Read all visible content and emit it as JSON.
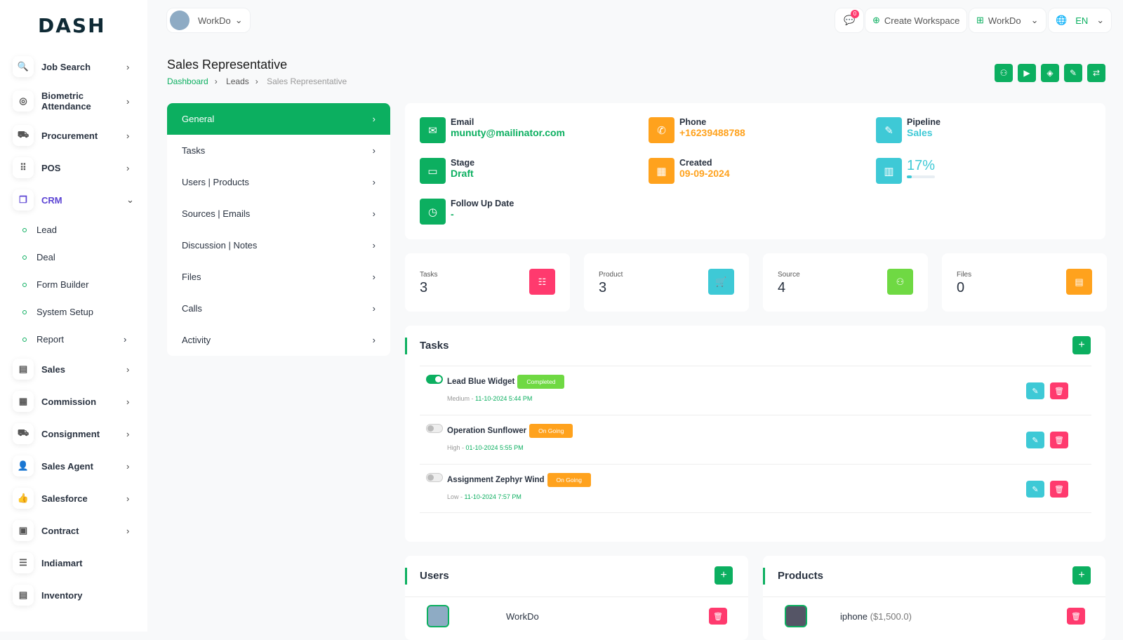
{
  "brand": "DASH",
  "workspace_selector": "WorkDo",
  "header": {
    "notifications_count": "0",
    "create_workspace": "Create Workspace",
    "workspace": "WorkDo",
    "language": "EN"
  },
  "sidebar": {
    "items": [
      {
        "label": "Job Search",
        "icon": "file-search-icon"
      },
      {
        "label": "Biometric Attendance",
        "icon": "fingerprint-icon"
      },
      {
        "label": "Procurement",
        "icon": "cart-icon"
      },
      {
        "label": "POS",
        "icon": "grid-icon"
      },
      {
        "label": "CRM",
        "icon": "layers-icon"
      },
      {
        "label": "Sales",
        "icon": "file-icon"
      },
      {
        "label": "Commission",
        "icon": "calculator-icon"
      },
      {
        "label": "Consignment",
        "icon": "truck-icon"
      },
      {
        "label": "Sales Agent",
        "icon": "user-check-icon"
      },
      {
        "label": "Salesforce",
        "icon": "thumb-up-icon"
      },
      {
        "label": "Contract",
        "icon": "contract-icon"
      },
      {
        "label": "Indiamart",
        "icon": "list-icon"
      },
      {
        "label": "Inventory",
        "icon": "file-icon"
      }
    ],
    "crm_sub": [
      "Lead",
      "Deal",
      "Form Builder",
      "System Setup",
      "Report"
    ]
  },
  "page": {
    "title": "Sales Representative",
    "breadcrumb": [
      "Dashboard",
      "Leads",
      "Sales Representative"
    ]
  },
  "menu": [
    "General",
    "Tasks",
    "Users | Products",
    "Sources | Emails",
    "Discussion | Notes",
    "Files",
    "Calls",
    "Activity"
  ],
  "info": {
    "email_label": "Email",
    "email": "munuty@mailinator.com",
    "phone_label": "Phone",
    "phone": "+16239488788",
    "pipeline_label": "Pipeline",
    "pipeline": "Sales",
    "stage_label": "Stage",
    "stage": "Draft",
    "created_label": "Created",
    "created": "09-09-2024",
    "progress": "17%",
    "progress_value": 17,
    "followup_label": "Follow Up Date",
    "followup": "-"
  },
  "stats": [
    {
      "label": "Tasks",
      "value": "3"
    },
    {
      "label": "Product",
      "value": "3"
    },
    {
      "label": "Source",
      "value": "4"
    },
    {
      "label": "Files",
      "value": "0"
    }
  ],
  "tasks": {
    "title": "Tasks",
    "items": [
      {
        "name": "Lead Blue Widget",
        "status": "Completed",
        "priority": "Medium",
        "date": "11-10-2024 5:44 PM",
        "done": true
      },
      {
        "name": "Operation Sunflower",
        "status": "On Going",
        "priority": "High",
        "date": "01-10-2024 5:55 PM",
        "done": false
      },
      {
        "name": "Assignment Zephyr Wind",
        "status": "On Going",
        "priority": "Low",
        "date": "11-10-2024 7:57 PM",
        "done": false
      }
    ]
  },
  "users": {
    "title": "Users",
    "items": [
      {
        "name": "WorkDo"
      }
    ]
  },
  "products": {
    "title": "Products",
    "items": [
      {
        "name": "iphone",
        "price": "($1,500.0)"
      }
    ]
  },
  "colors": {
    "primary": "#0caf60",
    "warning": "#ffa21d",
    "info": "#3ec9d6",
    "danger": "#ff3a6e",
    "success": "#6fd943"
  }
}
